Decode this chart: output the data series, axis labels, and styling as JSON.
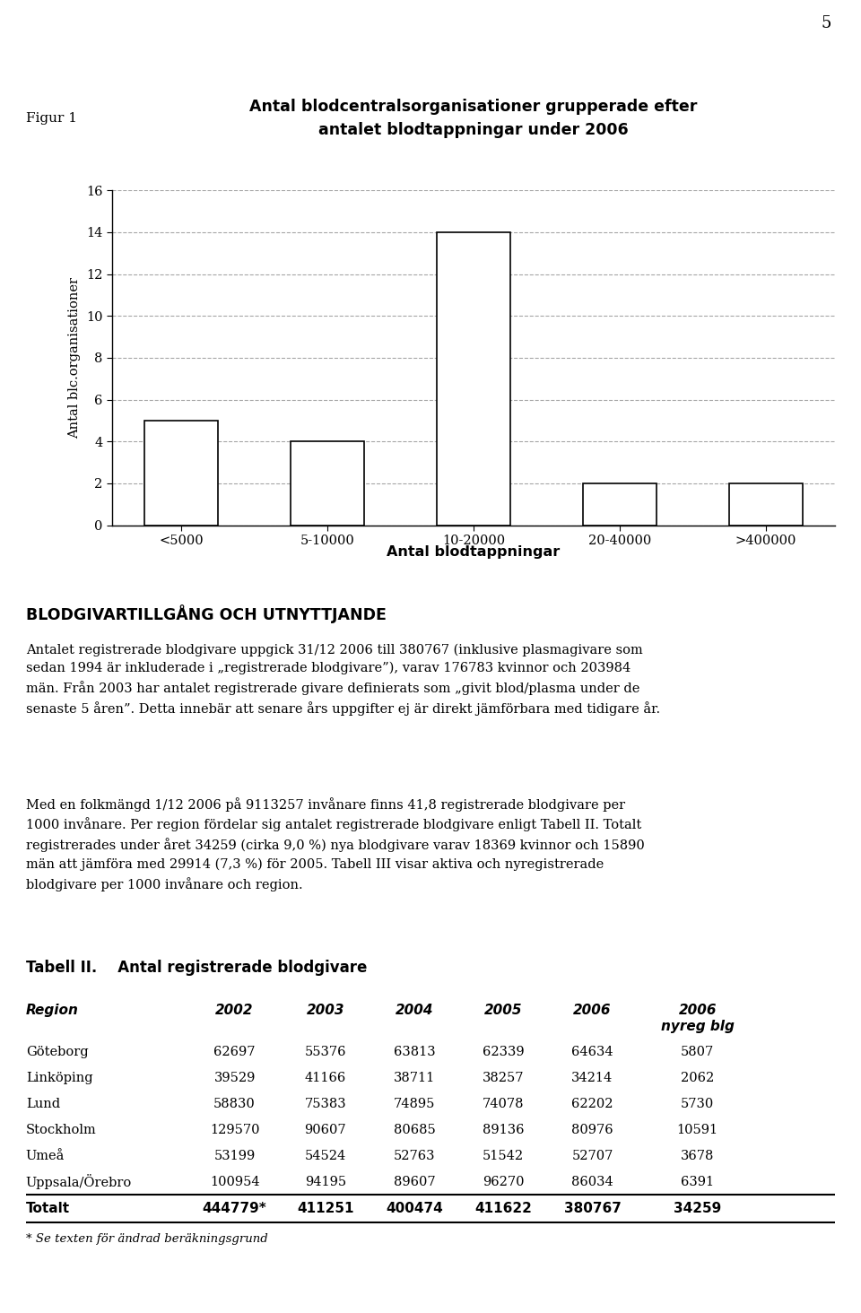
{
  "page_number": "5",
  "figur_label": "Figur 1",
  "chart_title_line1": "Antal blodcentralsorganisationer grupperade efter",
  "chart_title_line2": "antalet blodtappningar under 2006",
  "bar_categories": [
    "<5000",
    "5-10000",
    "10-20000",
    "20-40000",
    ">400000"
  ],
  "bar_values": [
    5,
    4,
    14,
    2,
    2
  ],
  "ylabel": "Antal blc.organisationer",
  "xlabel": "Antal blodtappningar",
  "ylim": [
    0,
    16
  ],
  "yticks": [
    0,
    2,
    4,
    6,
    8,
    10,
    12,
    14,
    16
  ],
  "section_title": "BLODGIVARTILLGÅNG OCH UTNYTTJANDE",
  "paragraph1_lines": [
    "Antalet registrerade blodgivare uppgick 31/12 2006 till 380767 (inklusive plasmagivare som",
    "sedan 1994 är inkluderade i „registrerade blodgivare”), varav 176783 kvinnor och 203984",
    "män. Från 2003 har antalet registrerade givare definierats som „givit blod/plasma under de",
    "senaste 5 åren”. Detta innebär att senare års uppgifter ej är direkt jämförbara med tidigare år."
  ],
  "paragraph2_lines": [
    "Med en folkmängd 1/12 2006 på 9113257 invånare finns 41,8 registrerade blodgivare per",
    "1000 invånare. Per region fördelar sig antalet registrerade blodgivare enligt Tabell II. Totalt",
    "registrerades under året 34259 (cirka 9,0 %) nya blodgivare varav 18369 kvinnor och 15890",
    "män att jämföra med 29914 (7,3 %) för 2005. Tabell III visar aktiva och nyregistrerade",
    "blodgivare per 1000 invånare och region."
  ],
  "tabell_label": "Tabell II.",
  "tabell_title": "Antal registrerade blodgivare",
  "table_col_headers": [
    "Region",
    "2002",
    "2003",
    "2004",
    "2005",
    "2006",
    "2006\nnyreg blg"
  ],
  "table_rows": [
    [
      "Göteborg",
      "62697",
      "55376",
      "63813",
      "62339",
      "64634",
      "5807"
    ],
    [
      "Linköping",
      "39529",
      "41166",
      "38711",
      "38257",
      "34214",
      "2062"
    ],
    [
      "Lund",
      "58830",
      "75383",
      "74895",
      "74078",
      "62202",
      "5730"
    ],
    [
      "Stockholm",
      "129570",
      "90607",
      "80685",
      "89136",
      "80976",
      "10591"
    ],
    [
      "Umeå",
      "53199",
      "54524",
      "52763",
      "51542",
      "52707",
      "3678"
    ],
    [
      "Uppsala/Örebro",
      "100954",
      "94195",
      "89607",
      "96270",
      "86034",
      "6391"
    ]
  ],
  "table_total_row": [
    "Totalt",
    "444779*",
    "411251",
    "400474",
    "411622",
    "380767",
    "34259"
  ],
  "footnote": "* Se texten för ändrad beräkningsgrund",
  "background_color": "#ffffff",
  "text_color": "#000000",
  "bar_color": "#ffffff",
  "bar_edge_color": "#000000",
  "grid_color": "#888888"
}
